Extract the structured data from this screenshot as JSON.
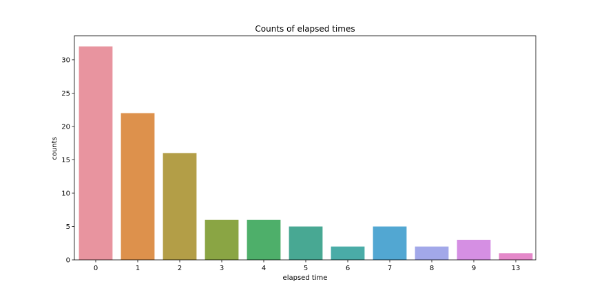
{
  "chart_data": {
    "type": "bar",
    "title": "Counts of elapsed times",
    "xlabel": "elapsed time",
    "ylabel": "counts",
    "categories": [
      "0",
      "1",
      "2",
      "3",
      "4",
      "5",
      "6",
      "7",
      "8",
      "9",
      "13"
    ],
    "values": [
      32,
      22,
      16,
      6,
      6,
      5,
      2,
      5,
      2,
      3,
      1
    ],
    "colors": [
      "#e8949f",
      "#dd914c",
      "#b39e47",
      "#8aa544",
      "#4eaf6a",
      "#48a893",
      "#4aaca7",
      "#52a7d2",
      "#a2a8e9",
      "#d58fe3",
      "#e488c9"
    ],
    "ylim": [
      0,
      33.6
    ],
    "yticks": [
      0,
      5,
      10,
      15,
      20,
      25,
      30
    ],
    "grid": false,
    "legend": "none"
  }
}
